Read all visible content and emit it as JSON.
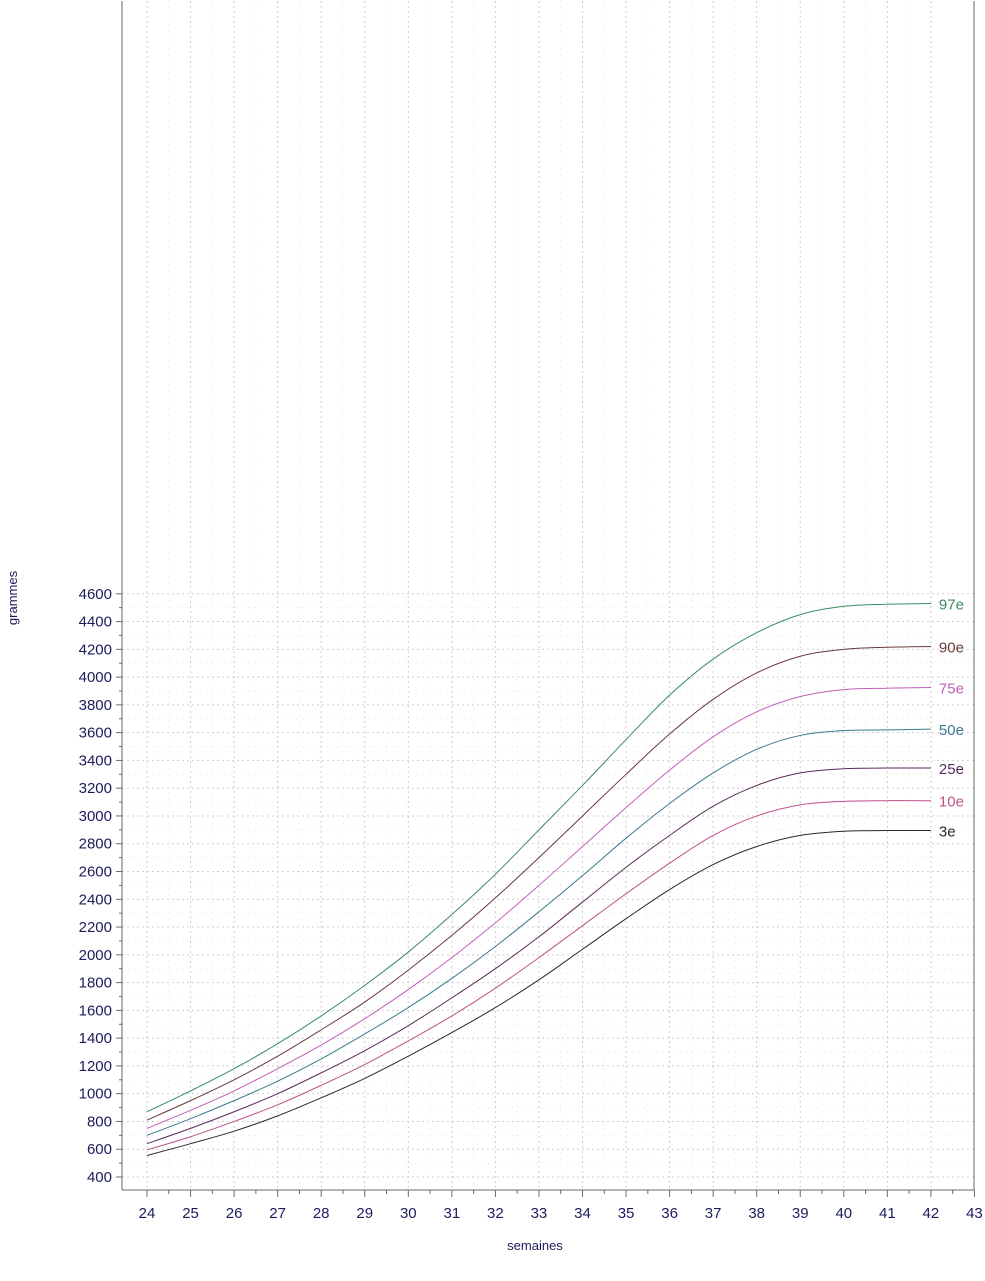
{
  "chart_data": {
    "type": "line",
    "title": "",
    "xlabel": "semaines",
    "ylabel": "grammes",
    "xlim": [
      23.4,
      43
    ],
    "ylim": [
      350,
      4600
    ],
    "x_ticks": [
      24,
      25,
      26,
      27,
      28,
      29,
      30,
      31,
      32,
      33,
      34,
      35,
      36,
      37,
      38,
      39,
      40,
      41,
      42,
      43
    ],
    "y_ticks": [
      400,
      600,
      800,
      1000,
      1200,
      1400,
      1600,
      1800,
      2000,
      2200,
      2400,
      2600,
      2800,
      3000,
      3200,
      3400,
      3600,
      3800,
      4000,
      4200,
      4400,
      4600
    ],
    "grid": true,
    "legend": "inline labels at right end of each curve",
    "x": [
      24,
      25,
      26,
      27,
      28,
      29,
      30,
      31,
      32,
      33,
      34,
      35,
      36,
      37,
      38,
      39,
      40,
      41,
      42
    ],
    "series": [
      {
        "name": "97e",
        "color": "#3a8c5e",
        "values": [
          870,
          1020,
          1180,
          1360,
          1560,
          1780,
          2020,
          2290,
          2580,
          2900,
          3220,
          3550,
          3870,
          4130,
          4320,
          4450,
          4510,
          4525,
          4530
        ]
      },
      {
        "name": "90e",
        "color": "#6b3a3a",
        "values": [
          810,
          950,
          1100,
          1270,
          1460,
          1660,
          1890,
          2140,
          2410,
          2700,
          3000,
          3300,
          3590,
          3840,
          4030,
          4150,
          4200,
          4215,
          4220
        ]
      },
      {
        "name": "75e",
        "color": "#c060b8",
        "values": [
          750,
          880,
          1020,
          1180,
          1350,
          1540,
          1750,
          1980,
          2230,
          2500,
          2780,
          3060,
          3330,
          3570,
          3750,
          3860,
          3910,
          3920,
          3925
        ]
      },
      {
        "name": "50e",
        "color": "#3a7a8c",
        "values": [
          700,
          820,
          950,
          1090,
          1250,
          1430,
          1620,
          1830,
          2060,
          2310,
          2570,
          2840,
          3090,
          3310,
          3480,
          3580,
          3615,
          3620,
          3625
        ]
      },
      {
        "name": "25e",
        "color": "#5a2a5a",
        "values": [
          640,
          750,
          870,
          1000,
          1150,
          1310,
          1490,
          1690,
          1900,
          2130,
          2380,
          2630,
          2860,
          3070,
          3220,
          3310,
          3340,
          3345,
          3345
        ]
      },
      {
        "name": "10e",
        "color": "#c0508a",
        "values": [
          595,
          690,
          800,
          920,
          1060,
          1210,
          1380,
          1560,
          1760,
          1980,
          2210,
          2440,
          2660,
          2860,
          3000,
          3080,
          3105,
          3110,
          3110
        ]
      },
      {
        "name": "3e",
        "color": "#2a2a2a",
        "values": [
          555,
          640,
          730,
          840,
          970,
          1110,
          1270,
          1440,
          1620,
          1820,
          2040,
          2260,
          2470,
          2650,
          2780,
          2860,
          2890,
          2895,
          2895
        ]
      }
    ]
  }
}
